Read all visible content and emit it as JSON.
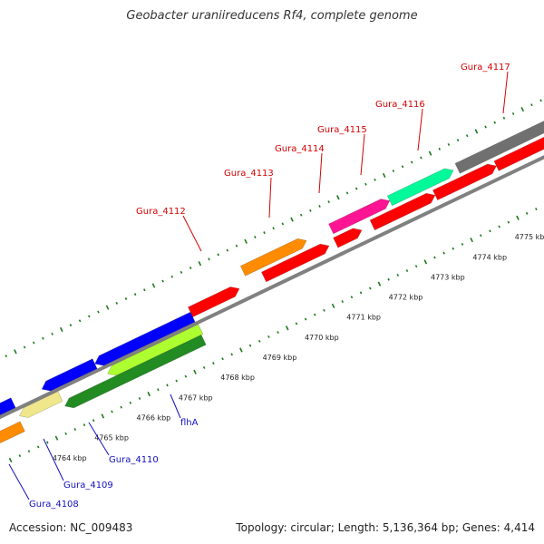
{
  "title": "Geobacter uraniireducens Rf4, complete genome",
  "footer": {
    "accession": "Accession: NC_009483",
    "stats": "Topology: circular; Length: 5,136,364 bp; Genes: 4,414"
  },
  "colors": {
    "forward_label": "#d40000",
    "reverse_label": "#1010c0",
    "backbone": "#808080",
    "tick": "#1a7a1a"
  },
  "ticks": [
    {
      "label": "4764 kbp"
    },
    {
      "label": "4765 kbp"
    },
    {
      "label": "4766 kbp"
    },
    {
      "label": "4767 kbp"
    },
    {
      "label": "4768 kbp"
    },
    {
      "label": "4769 kbp"
    },
    {
      "label": "4770 kbp"
    },
    {
      "label": "4771 kbp"
    },
    {
      "label": "4772 kbp"
    },
    {
      "label": "4773 kbp"
    },
    {
      "label": "4774 kbp"
    },
    {
      "label": "4775 kbp"
    }
  ],
  "forward_labels": [
    {
      "name": "Gura_4112"
    },
    {
      "name": "Gura_4113"
    },
    {
      "name": "Gura_4114"
    },
    {
      "name": "Gura_4115"
    },
    {
      "name": "Gura_4116"
    },
    {
      "name": "Gura_4117"
    }
  ],
  "reverse_labels": [
    {
      "name": "flhA"
    },
    {
      "name": "Gura_4110"
    },
    {
      "name": "Gura_4109"
    },
    {
      "name": "Gura_4108"
    }
  ],
  "features": [
    {
      "strand": "forward",
      "color": "#ff0000"
    },
    {
      "strand": "forward",
      "color": "#ff8c00"
    },
    {
      "strand": "forward",
      "color": "#ff1493"
    },
    {
      "strand": "forward",
      "color": "#00fa9a"
    },
    {
      "strand": "forward",
      "color": "#707070"
    },
    {
      "strand": "reverse",
      "color": "#0000ff"
    },
    {
      "strand": "reverse",
      "color": "#adff2f"
    },
    {
      "strand": "reverse",
      "color": "#228b22"
    },
    {
      "strand": "reverse",
      "color": "#f0e68c"
    },
    {
      "strand": "reverse",
      "color": "#ff8c00"
    }
  ]
}
